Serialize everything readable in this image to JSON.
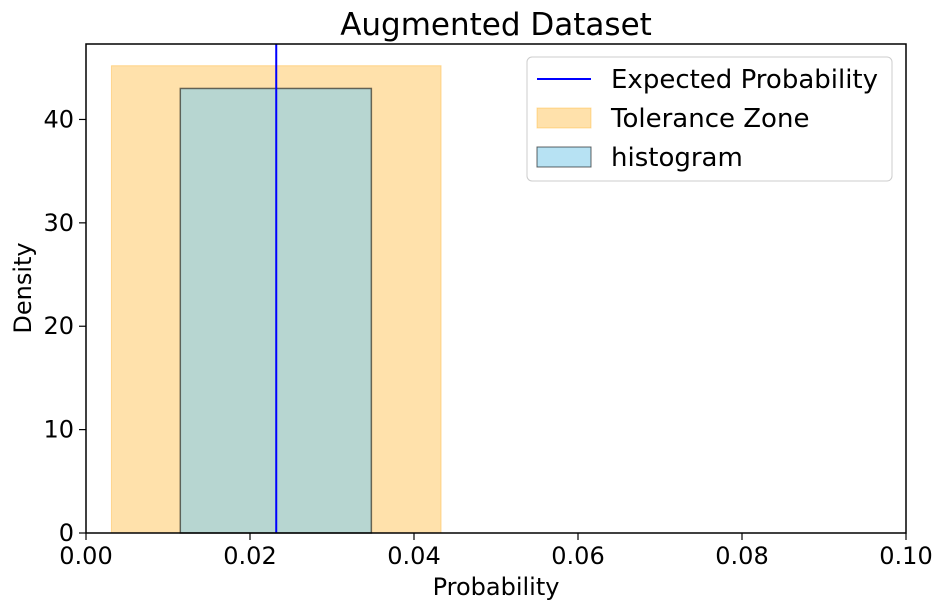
{
  "chart_data": {
    "type": "histogram",
    "title": "Augmented Dataset",
    "xlabel": "Probability",
    "ylabel": "Density",
    "xlim": [
      0.0,
      0.1
    ],
    "ylim": [
      0,
      47.3
    ],
    "x_ticks": [
      0.0,
      0.02,
      0.04,
      0.06,
      0.08,
      0.1
    ],
    "x_tick_labels": [
      "0.00",
      "0.02",
      "0.04",
      "0.06",
      "0.08",
      "0.10"
    ],
    "y_ticks": [
      0,
      10,
      20,
      30,
      40
    ],
    "y_tick_labels": [
      "0",
      "10",
      "20",
      "30",
      "40"
    ],
    "grid": false,
    "legend_position": "top-right",
    "legend": [
      {
        "label": "Expected Probability",
        "kind": "line"
      },
      {
        "label": "Tolerance Zone",
        "kind": "patch"
      },
      {
        "label": "histogram",
        "kind": "patch"
      }
    ],
    "expected_probability": {
      "x": 0.0232,
      "color": "#0000ff"
    },
    "tolerance_zone": {
      "x_min": 0.0031,
      "x_max": 0.0433,
      "height": 45.2,
      "color": "#ffa500",
      "alpha": 0.33
    },
    "histogram": {
      "bins": [
        {
          "x_min": 0.0115,
          "x_max": 0.0348,
          "density": 43.0
        }
      ],
      "color": "#87ceeb",
      "alpha": 0.6,
      "edgecolor": "#000000"
    }
  }
}
